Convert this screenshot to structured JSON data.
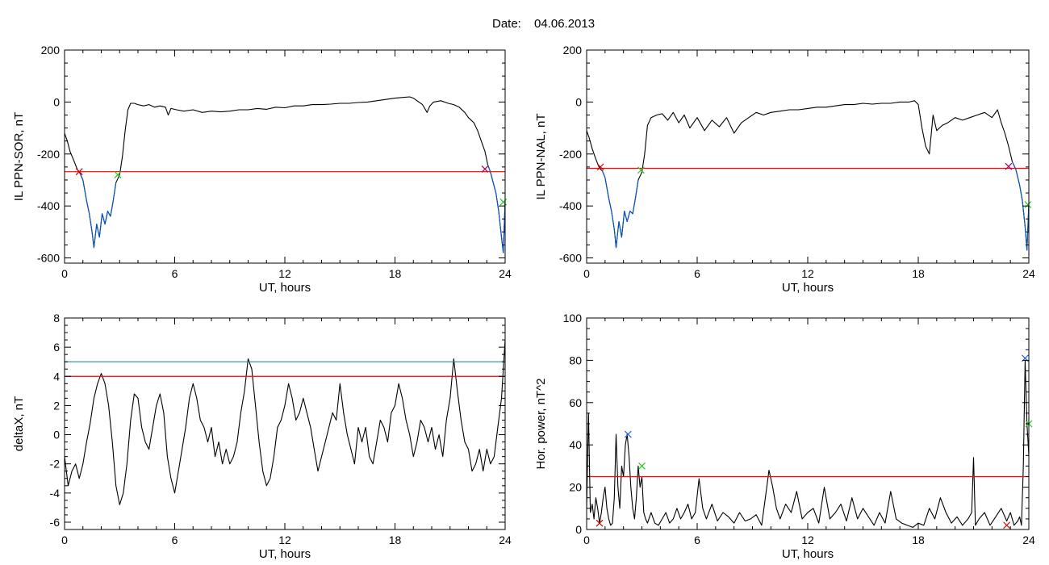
{
  "figure": {
    "title_prefix": "Date:",
    "date": "04.06.2013"
  },
  "chart_data": [
    {
      "type": "line",
      "xlabel": "UT, hours",
      "ylabel": "IL PPN-SOR, nT",
      "xlim": [
        0,
        24
      ],
      "ylim": [
        -620,
        200
      ],
      "xticks": [
        0,
        6,
        12,
        18,
        24
      ],
      "yticks": [
        -600,
        -400,
        -200,
        0,
        200
      ],
      "threshold": {
        "y": -268,
        "color": "#ff0000"
      },
      "series": [
        {
          "color": "#000000",
          "x": [
            0,
            0.15,
            0.3,
            0.5,
            0.7,
            0.85,
            1.0,
            1.2,
            1.35,
            1.5,
            1.6,
            1.75,
            1.9,
            2.05,
            2.2,
            2.35,
            2.5,
            2.65,
            2.8,
            3.0,
            3.15,
            3.3,
            3.45,
            3.6,
            3.8,
            4.0,
            4.3,
            4.6,
            4.9,
            5.2,
            5.5,
            5.65,
            5.8,
            6.1,
            6.5,
            7.0,
            7.5,
            8.0,
            8.5,
            9.0,
            9.5,
            10.0,
            10.5,
            11.0,
            11.5,
            12.0,
            12.5,
            13.0,
            13.5,
            14.0,
            14.5,
            15.0,
            15.5,
            16.0,
            16.5,
            17.0,
            17.5,
            18.0,
            18.5,
            18.8,
            19.0,
            19.2,
            19.5,
            19.75,
            19.9,
            20.1,
            20.5,
            20.9,
            21.2,
            21.5,
            21.8,
            22.0,
            22.3,
            22.5,
            22.7,
            22.9,
            23.05,
            23.2,
            23.35,
            23.5,
            23.65,
            23.8,
            23.9,
            24.0
          ],
          "y": [
            -120,
            -150,
            -190,
            -225,
            -260,
            -275,
            -300,
            -380,
            -430,
            -500,
            -560,
            -470,
            -520,
            -430,
            -470,
            -420,
            -440,
            -380,
            -310,
            -280,
            -210,
            -110,
            -30,
            -5,
            -5,
            -10,
            -15,
            -10,
            -20,
            -15,
            -20,
            -50,
            -25,
            -30,
            -35,
            -30,
            -40,
            -35,
            -38,
            -35,
            -30,
            -30,
            -25,
            -28,
            -20,
            -22,
            -15,
            -15,
            -10,
            -10,
            -8,
            -5,
            -5,
            -2,
            0,
            5,
            10,
            15,
            18,
            20,
            15,
            5,
            -10,
            -40,
            -15,
            0,
            5,
            -5,
            -10,
            -20,
            -40,
            -60,
            -80,
            -110,
            -150,
            -190,
            -240,
            -270,
            -310,
            -350,
            -420,
            -520,
            -580,
            -380
          ]
        },
        {
          "color": "#0055cc",
          "x": [
            0.85,
            1.0,
            1.2,
            1.35,
            1.5,
            1.6,
            1.75,
            1.9,
            2.05,
            2.2,
            2.35,
            2.5,
            2.65,
            2.8
          ],
          "y": [
            -275,
            -300,
            -380,
            -430,
            -500,
            -560,
            -470,
            -520,
            -430,
            -470,
            -420,
            -440,
            -380,
            -310
          ]
        },
        {
          "color": "#0055cc",
          "x": [
            23.05,
            23.2,
            23.35,
            23.5,
            23.65,
            23.8,
            23.9,
            24.0
          ],
          "y": [
            -240,
            -270,
            -310,
            -350,
            -420,
            -520,
            -580,
            -380
          ]
        }
      ],
      "markers": [
        {
          "x": 0.8,
          "y": -268,
          "color": "#cc0000"
        },
        {
          "x": 2.9,
          "y": -280,
          "color": "#22cc22"
        },
        {
          "x": 22.9,
          "y": -258,
          "color": "#aa0055"
        },
        {
          "x": 23.9,
          "y": -385,
          "color": "#22cc22"
        }
      ]
    },
    {
      "type": "line",
      "xlabel": "UT, hours",
      "ylabel": "IL PPN-NAL, nT",
      "xlim": [
        0,
        24
      ],
      "ylim": [
        -620,
        200
      ],
      "xticks": [
        0,
        6,
        12,
        18,
        24
      ],
      "yticks": [
        -600,
        -400,
        -200,
        0,
        200
      ],
      "threshold": {
        "y": -255,
        "color": "#ff0000"
      },
      "series": [
        {
          "color": "#000000",
          "x": [
            0,
            0.15,
            0.3,
            0.5,
            0.7,
            0.85,
            1.0,
            1.2,
            1.35,
            1.5,
            1.6,
            1.75,
            1.9,
            2.05,
            2.2,
            2.35,
            2.5,
            2.65,
            2.8,
            3.0,
            3.15,
            3.3,
            3.5,
            3.8,
            4.1,
            4.4,
            4.7,
            5.0,
            5.3,
            5.6,
            6.0,
            6.4,
            6.8,
            7.2,
            7.6,
            8.0,
            8.4,
            8.8,
            9.2,
            9.6,
            10.0,
            10.5,
            11.0,
            11.5,
            12.0,
            12.5,
            13.0,
            13.5,
            14.0,
            14.5,
            15.0,
            15.5,
            16.0,
            16.5,
            17.0,
            17.5,
            17.8,
            18.0,
            18.2,
            18.4,
            18.6,
            18.8,
            19.0,
            19.3,
            19.6,
            20.0,
            20.4,
            20.8,
            21.2,
            21.6,
            22.0,
            22.3,
            22.5,
            22.7,
            22.9,
            23.1,
            23.3,
            23.5,
            23.65,
            23.8,
            23.9,
            24.0
          ],
          "y": [
            -110,
            -140,
            -180,
            -220,
            -255,
            -265,
            -290,
            -370,
            -420,
            -490,
            -560,
            -460,
            -520,
            -420,
            -460,
            -420,
            -430,
            -370,
            -300,
            -270,
            -200,
            -90,
            -60,
            -50,
            -45,
            -70,
            -40,
            -80,
            -50,
            -100,
            -60,
            -110,
            -70,
            -95,
            -60,
            -120,
            -80,
            -60,
            -40,
            -50,
            -40,
            -35,
            -30,
            -30,
            -25,
            -20,
            -20,
            -15,
            -10,
            -10,
            -5,
            -8,
            -5,
            -5,
            0,
            0,
            5,
            -10,
            -100,
            -170,
            -200,
            -50,
            -110,
            -90,
            -80,
            -60,
            -70,
            -60,
            -50,
            -40,
            -60,
            -30,
            -80,
            -120,
            -170,
            -230,
            -260,
            -320,
            -380,
            -480,
            -570,
            -390
          ]
        },
        {
          "color": "#0055cc",
          "x": [
            0.85,
            1.0,
            1.2,
            1.35,
            1.5,
            1.6,
            1.75,
            1.9,
            2.05,
            2.2,
            2.35,
            2.5,
            2.65,
            2.8
          ],
          "y": [
            -265,
            -290,
            -370,
            -420,
            -490,
            -560,
            -460,
            -520,
            -420,
            -460,
            -420,
            -430,
            -370,
            -300
          ]
        },
        {
          "color": "#0055cc",
          "x": [
            23.1,
            23.3,
            23.5,
            23.65,
            23.8,
            23.9,
            24.0
          ],
          "y": [
            -230,
            -260,
            -320,
            -380,
            -480,
            -570,
            -390
          ]
        }
      ],
      "markers": [
        {
          "x": 0.75,
          "y": -250,
          "color": "#cc0000"
        },
        {
          "x": 2.95,
          "y": -262,
          "color": "#22cc22"
        },
        {
          "x": 22.9,
          "y": -248,
          "color": "#aa0055"
        },
        {
          "x": 23.95,
          "y": -395,
          "color": "#22cc22"
        }
      ]
    },
    {
      "type": "line",
      "xlabel": "UT, hours",
      "ylabel": "deltaX, nT",
      "xlim": [
        0,
        24
      ],
      "ylim": [
        -6.5,
        8
      ],
      "xticks": [
        0,
        6,
        12,
        18,
        24
      ],
      "yticks": [
        -6,
        -4,
        -2,
        0,
        2,
        4,
        6,
        8
      ],
      "thresholds": [
        {
          "y": 5.0,
          "color": "#2a8a9a"
        },
        {
          "y": 4.0,
          "color": "#ff0000"
        }
      ],
      "series": [
        {
          "color": "#000000",
          "x": [
            0,
            0.2,
            0.4,
            0.6,
            0.8,
            1.0,
            1.2,
            1.4,
            1.6,
            1.8,
            2.0,
            2.2,
            2.4,
            2.6,
            2.8,
            3.0,
            3.2,
            3.4,
            3.6,
            3.8,
            4.0,
            4.2,
            4.4,
            4.6,
            4.8,
            5.0,
            5.2,
            5.4,
            5.6,
            5.8,
            6.0,
            6.2,
            6.4,
            6.6,
            6.8,
            7.0,
            7.2,
            7.4,
            7.6,
            7.8,
            8.0,
            8.2,
            8.4,
            8.6,
            8.8,
            9.0,
            9.2,
            9.4,
            9.6,
            9.8,
            10.0,
            10.2,
            10.4,
            10.6,
            10.8,
            11.0,
            11.2,
            11.4,
            11.6,
            11.8,
            12.0,
            12.2,
            12.4,
            12.6,
            12.8,
            13.0,
            13.2,
            13.4,
            13.6,
            13.8,
            14.0,
            14.2,
            14.4,
            14.6,
            14.8,
            15.0,
            15.2,
            15.4,
            15.6,
            15.8,
            16.0,
            16.2,
            16.4,
            16.6,
            16.8,
            17.0,
            17.2,
            17.4,
            17.6,
            17.8,
            18.0,
            18.2,
            18.4,
            18.6,
            18.8,
            19.0,
            19.2,
            19.4,
            19.6,
            19.8,
            20.0,
            20.2,
            20.4,
            20.6,
            20.8,
            21.0,
            21.2,
            21.4,
            21.6,
            21.8,
            22.0,
            22.2,
            22.4,
            22.6,
            22.8,
            23.0,
            23.2,
            23.4,
            23.6,
            23.8,
            24.0
          ],
          "y": [
            -1.5,
            -3.5,
            -2.5,
            -2.0,
            -3.0,
            -2.0,
            -0.5,
            0.8,
            2.5,
            3.5,
            4.2,
            3.5,
            2.0,
            -0.5,
            -3.5,
            -4.8,
            -4.0,
            -2.0,
            1.0,
            2.8,
            2.5,
            0.5,
            -0.5,
            -1.0,
            0.5,
            2.0,
            2.8,
            1.5,
            -1.5,
            -3.0,
            -4.0,
            -2.5,
            -1.0,
            0.5,
            2.5,
            3.5,
            2.5,
            1.0,
            0.5,
            -0.5,
            0.5,
            -1.5,
            -0.5,
            -2.0,
            -1.0,
            -2.0,
            -1.5,
            -0.5,
            1.5,
            3.0,
            5.2,
            4.5,
            2.0,
            -0.5,
            -2.5,
            -3.5,
            -3.0,
            -1.5,
            0.5,
            1.0,
            2.0,
            3.5,
            2.5,
            1.0,
            1.5,
            2.5,
            1.5,
            0.5,
            -1.0,
            -2.5,
            -1.5,
            -0.5,
            0.5,
            1.5,
            1.0,
            3.5,
            1.5,
            0.0,
            -1.0,
            -2.0,
            0.5,
            -0.5,
            0.5,
            -1.5,
            -2.0,
            -0.5,
            1.0,
            0.5,
            -0.5,
            1.5,
            2.0,
            3.5,
            2.5,
            1.0,
            0.0,
            -1.5,
            -0.5,
            1.0,
            0.5,
            -0.5,
            0.5,
            -1.0,
            0.0,
            -1.5,
            1.0,
            2.5,
            5.2,
            3.0,
            1.0,
            -0.5,
            -1.0,
            -2.5,
            -2.0,
            -1.0,
            -2.5,
            -1.0,
            -2.0,
            -1.5,
            0.5,
            2.5,
            6.5
          ]
        }
      ]
    },
    {
      "type": "line",
      "xlabel": "UT, hours",
      "ylabel": "Hor. power, nT^2",
      "xlim": [
        0,
        24
      ],
      "ylim": [
        0,
        100
      ],
      "xticks": [
        0,
        6,
        12,
        18,
        24
      ],
      "yticks": [
        0,
        20,
        40,
        60,
        80,
        100
      ],
      "threshold": {
        "y": 25,
        "color": "#ff0000"
      },
      "series": [
        {
          "color": "#000000",
          "x": [
            0,
            0.1,
            0.2,
            0.3,
            0.4,
            0.5,
            0.6,
            0.7,
            0.8,
            0.9,
            1.0,
            1.1,
            1.2,
            1.3,
            1.4,
            1.5,
            1.6,
            1.7,
            1.8,
            1.9,
            2.0,
            2.1,
            2.2,
            2.3,
            2.4,
            2.5,
            2.6,
            2.7,
            2.8,
            2.9,
            3.0,
            3.1,
            3.2,
            3.3,
            3.5,
            3.7,
            3.9,
            4.1,
            4.3,
            4.5,
            4.7,
            4.9,
            5.1,
            5.3,
            5.5,
            5.7,
            5.9,
            6.1,
            6.3,
            6.5,
            6.8,
            7.1,
            7.4,
            7.7,
            8.0,
            8.3,
            8.6,
            8.9,
            9.2,
            9.5,
            9.7,
            9.9,
            10.1,
            10.3,
            10.5,
            10.8,
            11.1,
            11.4,
            11.7,
            12.0,
            12.3,
            12.6,
            12.9,
            13.2,
            13.5,
            13.8,
            14.1,
            14.4,
            14.7,
            15.0,
            15.3,
            15.6,
            15.9,
            16.2,
            16.5,
            16.8,
            17.1,
            17.4,
            17.7,
            18.0,
            18.3,
            18.6,
            18.9,
            19.2,
            19.5,
            19.8,
            20.1,
            20.4,
            20.7,
            20.9,
            21.0,
            21.1,
            21.3,
            21.6,
            21.9,
            22.2,
            22.5,
            22.8,
            23.0,
            23.2,
            23.4,
            23.5,
            23.6,
            23.7,
            23.8,
            23.9,
            24.0
          ],
          "y": [
            10,
            55,
            8,
            12,
            5,
            15,
            10,
            3,
            8,
            15,
            20,
            10,
            5,
            2,
            3,
            15,
            45,
            20,
            10,
            30,
            25,
            40,
            45,
            35,
            20,
            10,
            5,
            15,
            30,
            20,
            25,
            8,
            5,
            3,
            8,
            3,
            2,
            5,
            8,
            3,
            5,
            10,
            5,
            8,
            12,
            5,
            8,
            24,
            10,
            5,
            12,
            4,
            8,
            6,
            3,
            8,
            4,
            5,
            7,
            2,
            15,
            28,
            20,
            10,
            5,
            12,
            8,
            18,
            5,
            8,
            10,
            3,
            20,
            5,
            8,
            12,
            4,
            15,
            5,
            10,
            6,
            2,
            8,
            3,
            18,
            5,
            3,
            2,
            1,
            3,
            2,
            10,
            5,
            15,
            8,
            3,
            6,
            2,
            5,
            8,
            34,
            2,
            5,
            8,
            2,
            6,
            10,
            4,
            8,
            2,
            4,
            6,
            2,
            30,
            80,
            50,
            35
          ]
        }
      ],
      "markers": [
        {
          "x": 0.7,
          "y": 3,
          "color": "#cc0000"
        },
        {
          "x": 2.25,
          "y": 45,
          "color": "#2266dd"
        },
        {
          "x": 3.0,
          "y": 30,
          "color": "#22cc22"
        },
        {
          "x": 22.8,
          "y": 2,
          "color": "#cc0000"
        },
        {
          "x": 23.8,
          "y": 81,
          "color": "#2266dd"
        },
        {
          "x": 24.0,
          "y": 50,
          "color": "#22cc22"
        }
      ]
    }
  ]
}
